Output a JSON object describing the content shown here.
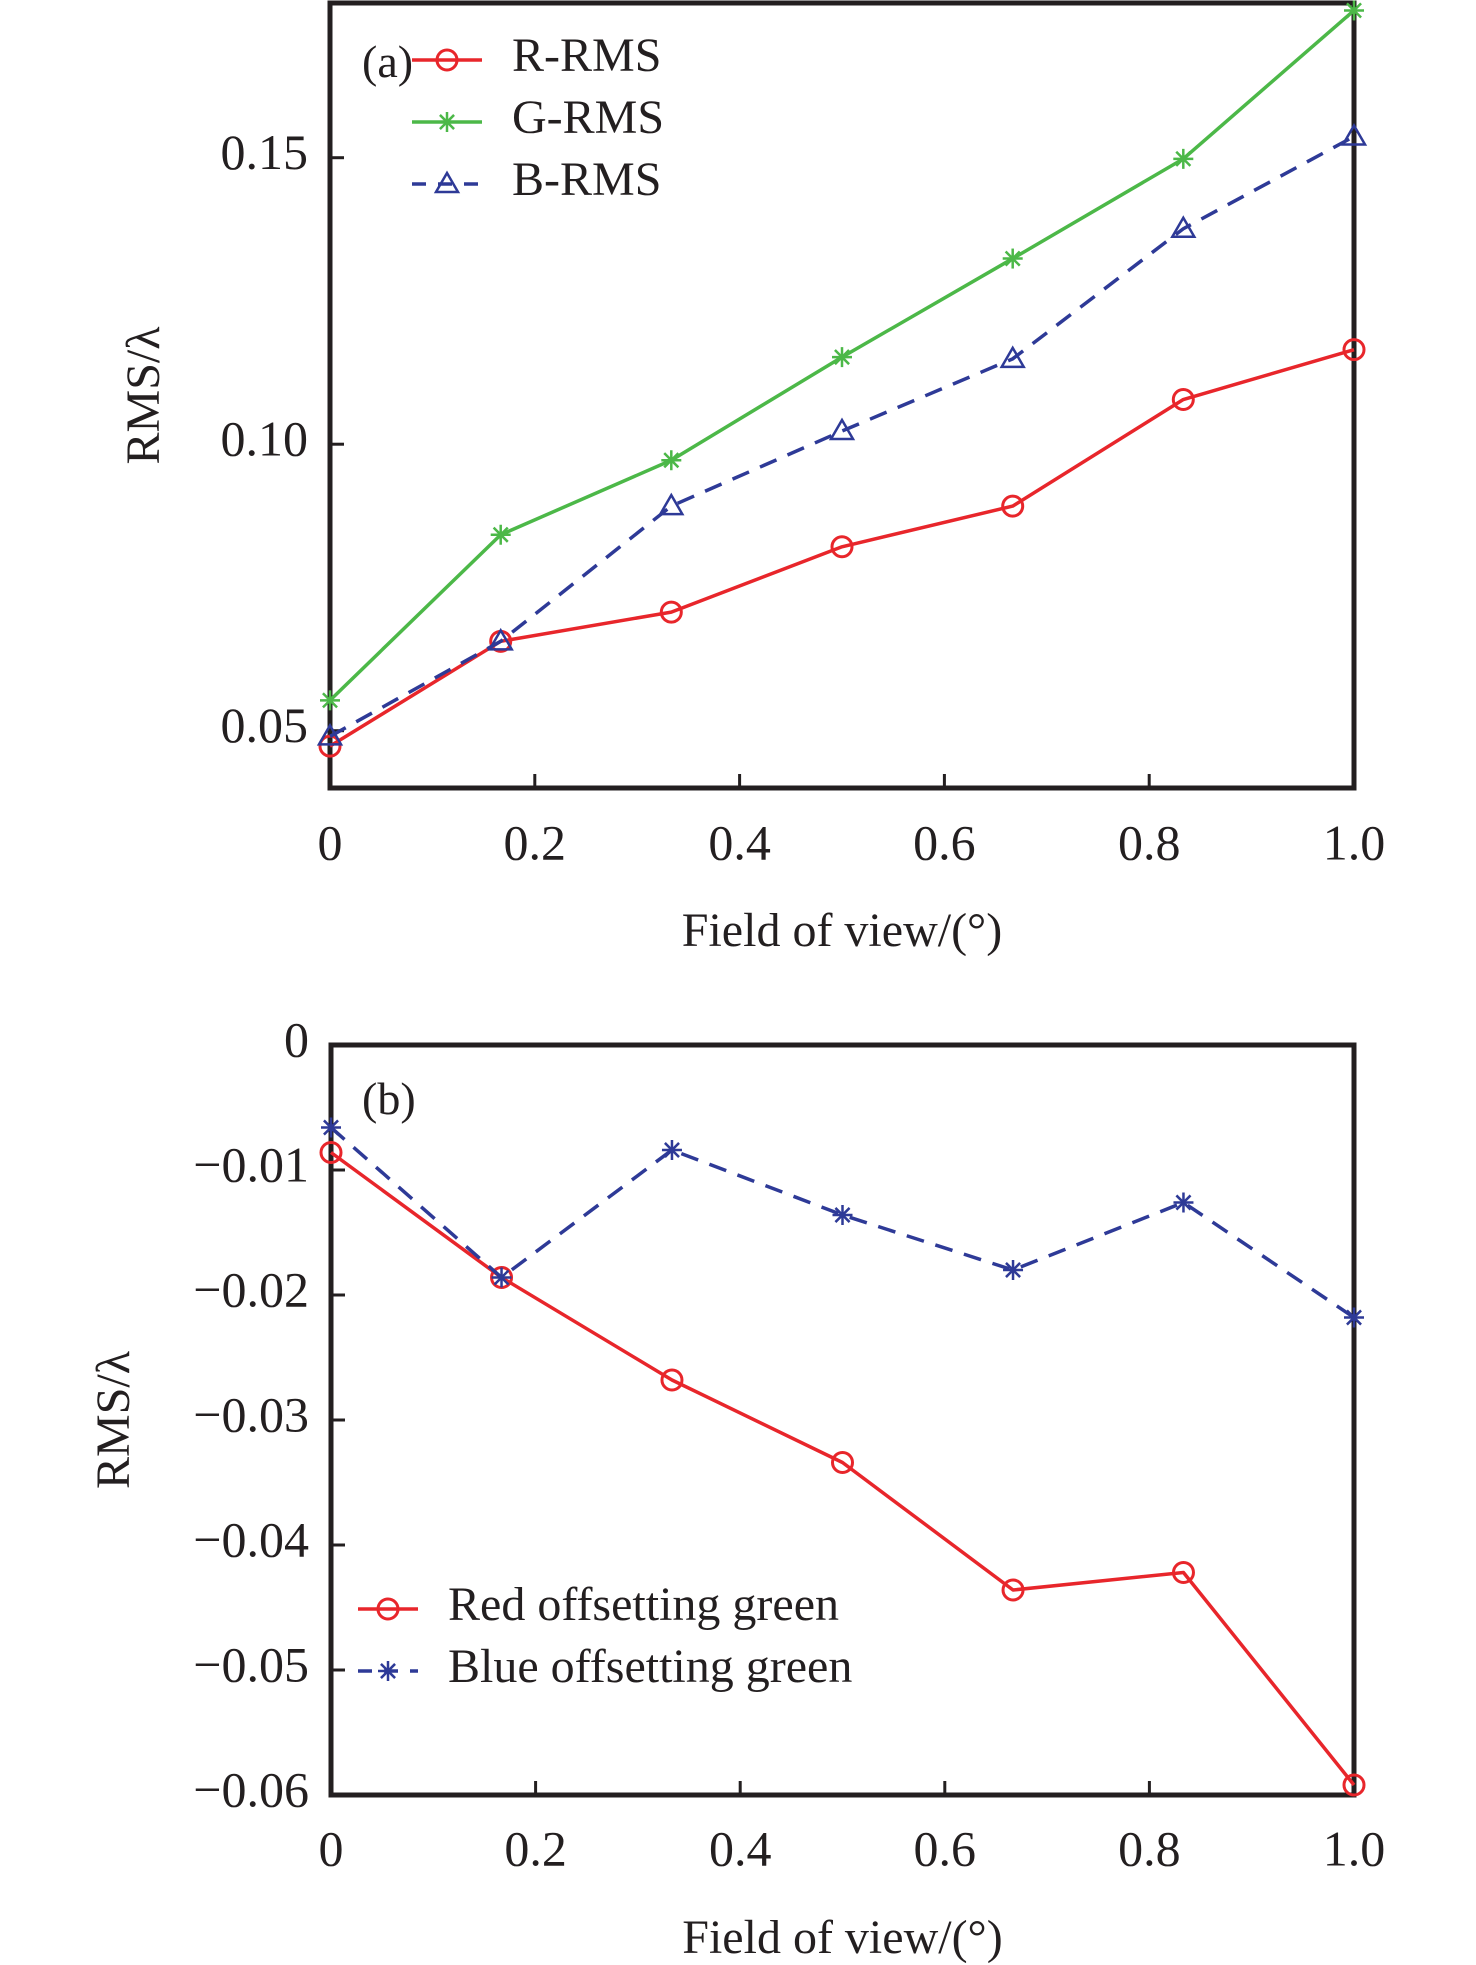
{
  "chart_data": [
    {
      "id": "a",
      "type": "line",
      "panel_label": "(a)",
      "xlabel": "Field of view/(°)",
      "ylabel": "RMS/λ",
      "xlim": [
        0,
        1.0
      ],
      "ylim": [
        0.04,
        0.177
      ],
      "xticks": [
        0,
        0.2,
        0.4,
        0.6,
        0.8,
        1.0
      ],
      "xtick_labels": [
        "0",
        "0.2",
        "0.4",
        "0.6",
        "0.8",
        "1.0"
      ],
      "yticks": [
        0.05,
        0.1,
        0.15
      ],
      "ytick_labels": [
        "0.05",
        "0.10",
        "0.15"
      ],
      "grid": false,
      "legend_position": "top-left",
      "x": [
        0,
        0.1667,
        0.3333,
        0.5,
        0.6667,
        0.8333,
        1.0
      ],
      "series": [
        {
          "name": "R-RMS",
          "color": "#e8262b",
          "marker": "circle",
          "dash": "solid",
          "values": [
            0.0473,
            0.0656,
            0.0707,
            0.0821,
            0.0892,
            0.1078,
            0.1165
          ]
        },
        {
          "name": "G-RMS",
          "color": "#4cb848",
          "marker": "asterisk",
          "dash": "solid",
          "values": [
            0.0553,
            0.0842,
            0.0972,
            0.1152,
            0.1324,
            0.1498,
            0.1757
          ]
        },
        {
          "name": "B-RMS",
          "color": "#2e3a97",
          "marker": "triangle",
          "dash": "dashed",
          "values": [
            0.049,
            0.0656,
            0.0892,
            0.1023,
            0.1149,
            0.1376,
            0.1537
          ]
        }
      ]
    },
    {
      "id": "b",
      "type": "line",
      "panel_label": "(b)",
      "xlabel": "Field of view/(°)",
      "ylabel": "RMS/λ",
      "xlim": [
        0,
        1.0
      ],
      "ylim": [
        -0.06,
        0
      ],
      "xticks": [
        0,
        0.2,
        0.4,
        0.6,
        0.8,
        1.0
      ],
      "xtick_labels": [
        "0",
        "0.2",
        "0.4",
        "0.6",
        "0.8",
        "1.0"
      ],
      "yticks": [
        0,
        -0.01,
        -0.02,
        -0.03,
        -0.04,
        -0.05,
        -0.06
      ],
      "ytick_labels": [
        "0",
        "−0.01",
        "−0.02",
        "−0.03",
        "−0.04",
        "−0.05",
        "−0.06"
      ],
      "grid": false,
      "legend_position": "bottom-left",
      "x": [
        0,
        0.1667,
        0.3333,
        0.5,
        0.6667,
        0.8333,
        1.0
      ],
      "series": [
        {
          "name": "Red offsetting green",
          "color": "#e8262b",
          "marker": "circle",
          "dash": "solid",
          "values": [
            -0.0086,
            -0.0186,
            -0.0268,
            -0.0334,
            -0.0436,
            -0.0422,
            -0.0592
          ]
        },
        {
          "name": "Blue offsetting green",
          "color": "#2e3a97",
          "marker": "asterisk",
          "dash": "dashed",
          "values": [
            -0.0066,
            -0.0186,
            -0.0084,
            -0.0136,
            -0.018,
            -0.0126,
            -0.0218
          ]
        }
      ]
    }
  ]
}
